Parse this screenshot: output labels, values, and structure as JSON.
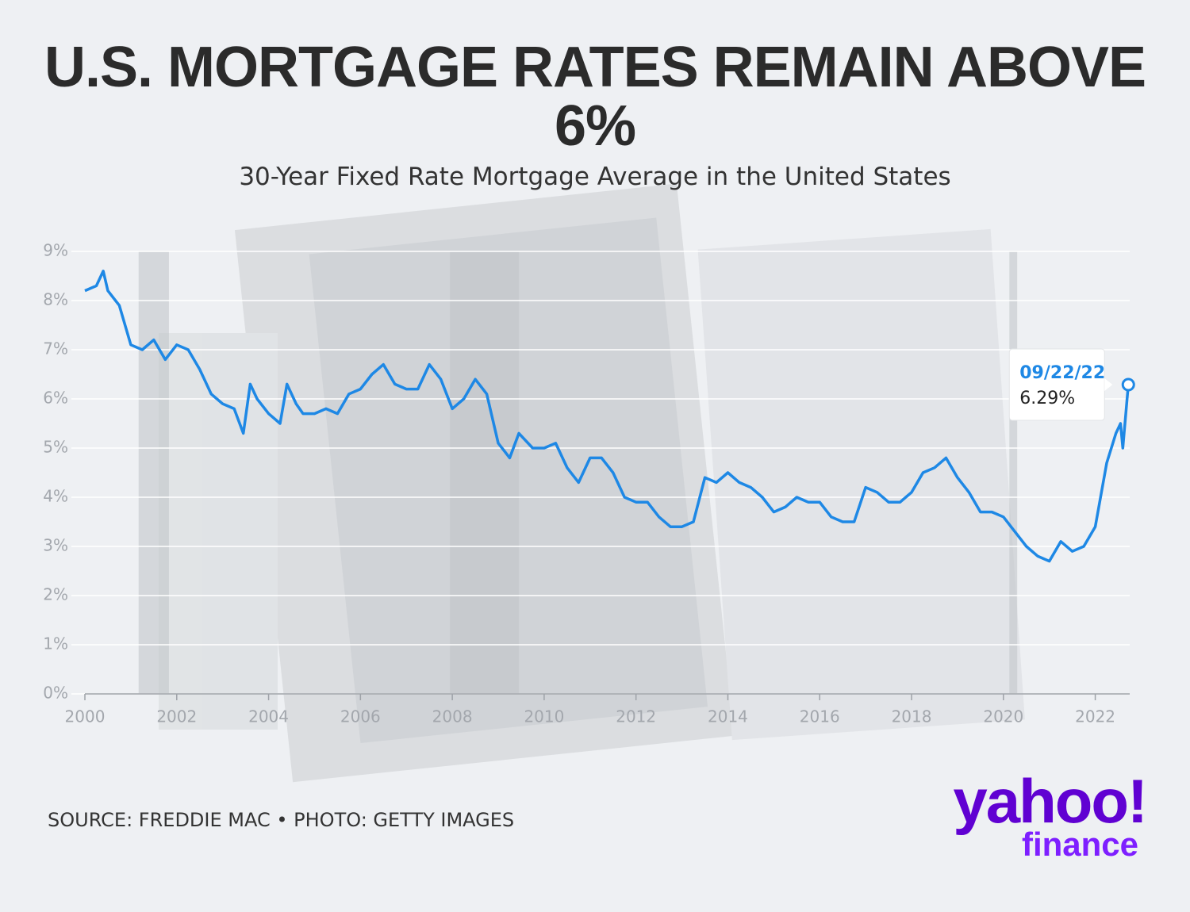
{
  "chart_data": {
    "type": "line",
    "title": "U.S. MORTGAGE RATES REMAIN ABOVE 6%",
    "subtitle": "30-Year Fixed Rate Mortgage Average in the United States",
    "x": [
      2000.0,
      2000.25,
      2000.4,
      2000.5,
      2000.75,
      2001.0,
      2001.25,
      2001.5,
      2001.75,
      2002.0,
      2002.25,
      2002.5,
      2002.75,
      2003.0,
      2003.25,
      2003.45,
      2003.6,
      2003.75,
      2004.0,
      2004.25,
      2004.4,
      2004.6,
      2004.75,
      2005.0,
      2005.25,
      2005.5,
      2005.75,
      2006.0,
      2006.25,
      2006.5,
      2006.75,
      2007.0,
      2007.25,
      2007.5,
      2007.75,
      2008.0,
      2008.25,
      2008.5,
      2008.75,
      2009.0,
      2009.25,
      2009.45,
      2009.75,
      2010.0,
      2010.25,
      2010.5,
      2010.75,
      2011.0,
      2011.25,
      2011.5,
      2011.75,
      2012.0,
      2012.25,
      2012.5,
      2012.75,
      2013.0,
      2013.25,
      2013.5,
      2013.75,
      2014.0,
      2014.25,
      2014.5,
      2014.75,
      2015.0,
      2015.25,
      2015.5,
      2015.75,
      2016.0,
      2016.25,
      2016.5,
      2016.75,
      2017.0,
      2017.25,
      2017.5,
      2017.75,
      2018.0,
      2018.25,
      2018.5,
      2018.75,
      2019.0,
      2019.25,
      2019.5,
      2019.75,
      2020.0,
      2020.25,
      2020.5,
      2020.75,
      2021.0,
      2021.25,
      2021.5,
      2021.75,
      2022.0,
      2022.25,
      2022.45,
      2022.55,
      2022.6,
      2022.72
    ],
    "values": [
      8.2,
      8.3,
      8.6,
      8.2,
      7.9,
      7.1,
      7.0,
      7.2,
      6.8,
      7.1,
      7.0,
      6.6,
      6.1,
      5.9,
      5.8,
      5.3,
      6.3,
      6.0,
      5.7,
      5.5,
      6.3,
      5.9,
      5.7,
      5.7,
      5.8,
      5.7,
      6.1,
      6.2,
      6.5,
      6.7,
      6.3,
      6.2,
      6.2,
      6.7,
      6.4,
      5.8,
      6.0,
      6.4,
      6.1,
      5.1,
      4.8,
      5.3,
      5.0,
      5.0,
      5.1,
      4.6,
      4.3,
      4.8,
      4.8,
      4.5,
      4.0,
      3.9,
      3.9,
      3.6,
      3.4,
      3.4,
      3.5,
      4.4,
      4.3,
      4.5,
      4.3,
      4.2,
      4.0,
      3.7,
      3.8,
      4.0,
      3.9,
      3.9,
      3.6,
      3.5,
      3.5,
      4.2,
      4.1,
      3.9,
      3.9,
      4.1,
      4.5,
      4.6,
      4.8,
      4.4,
      4.1,
      3.7,
      3.7,
      3.6,
      3.3,
      3.0,
      2.8,
      2.7,
      3.1,
      2.9,
      3.0,
      3.4,
      4.7,
      5.3,
      5.5,
      5.0,
      6.29
    ],
    "color": "#1e88e5",
    "xlim": [
      2000,
      2022.75
    ],
    "xticks": [
      2000,
      2002,
      2004,
      2006,
      2008,
      2010,
      2012,
      2014,
      2016,
      2018,
      2020,
      2022
    ],
    "ylim": [
      0,
      9
    ],
    "yticks": [
      {
        "value": 0,
        "label": "0%"
      },
      {
        "value": 1,
        "label": "1%"
      },
      {
        "value": 2,
        "label": "2%"
      },
      {
        "value": 3,
        "label": "3%"
      },
      {
        "value": 4,
        "label": "4%"
      },
      {
        "value": 5,
        "label": "5%"
      },
      {
        "value": 6,
        "label": "6%"
      },
      {
        "value": 7,
        "label": "7%"
      },
      {
        "value": 8,
        "label": "8%"
      },
      {
        "value": 9,
        "label": "9%"
      }
    ],
    "grid": true,
    "shaded_periods": [
      [
        2001.17,
        2001.83
      ],
      [
        2007.95,
        2009.45
      ],
      [
        2020.13,
        2020.3
      ]
    ],
    "annotation": {
      "date": "09/22/22",
      "value": 6.29,
      "label": "6.29%"
    }
  },
  "source": "SOURCE: FREDDIE MAC • PHOTO: GETTY IMAGES",
  "logo": {
    "word": "yahoo!",
    "sub": "finance"
  }
}
